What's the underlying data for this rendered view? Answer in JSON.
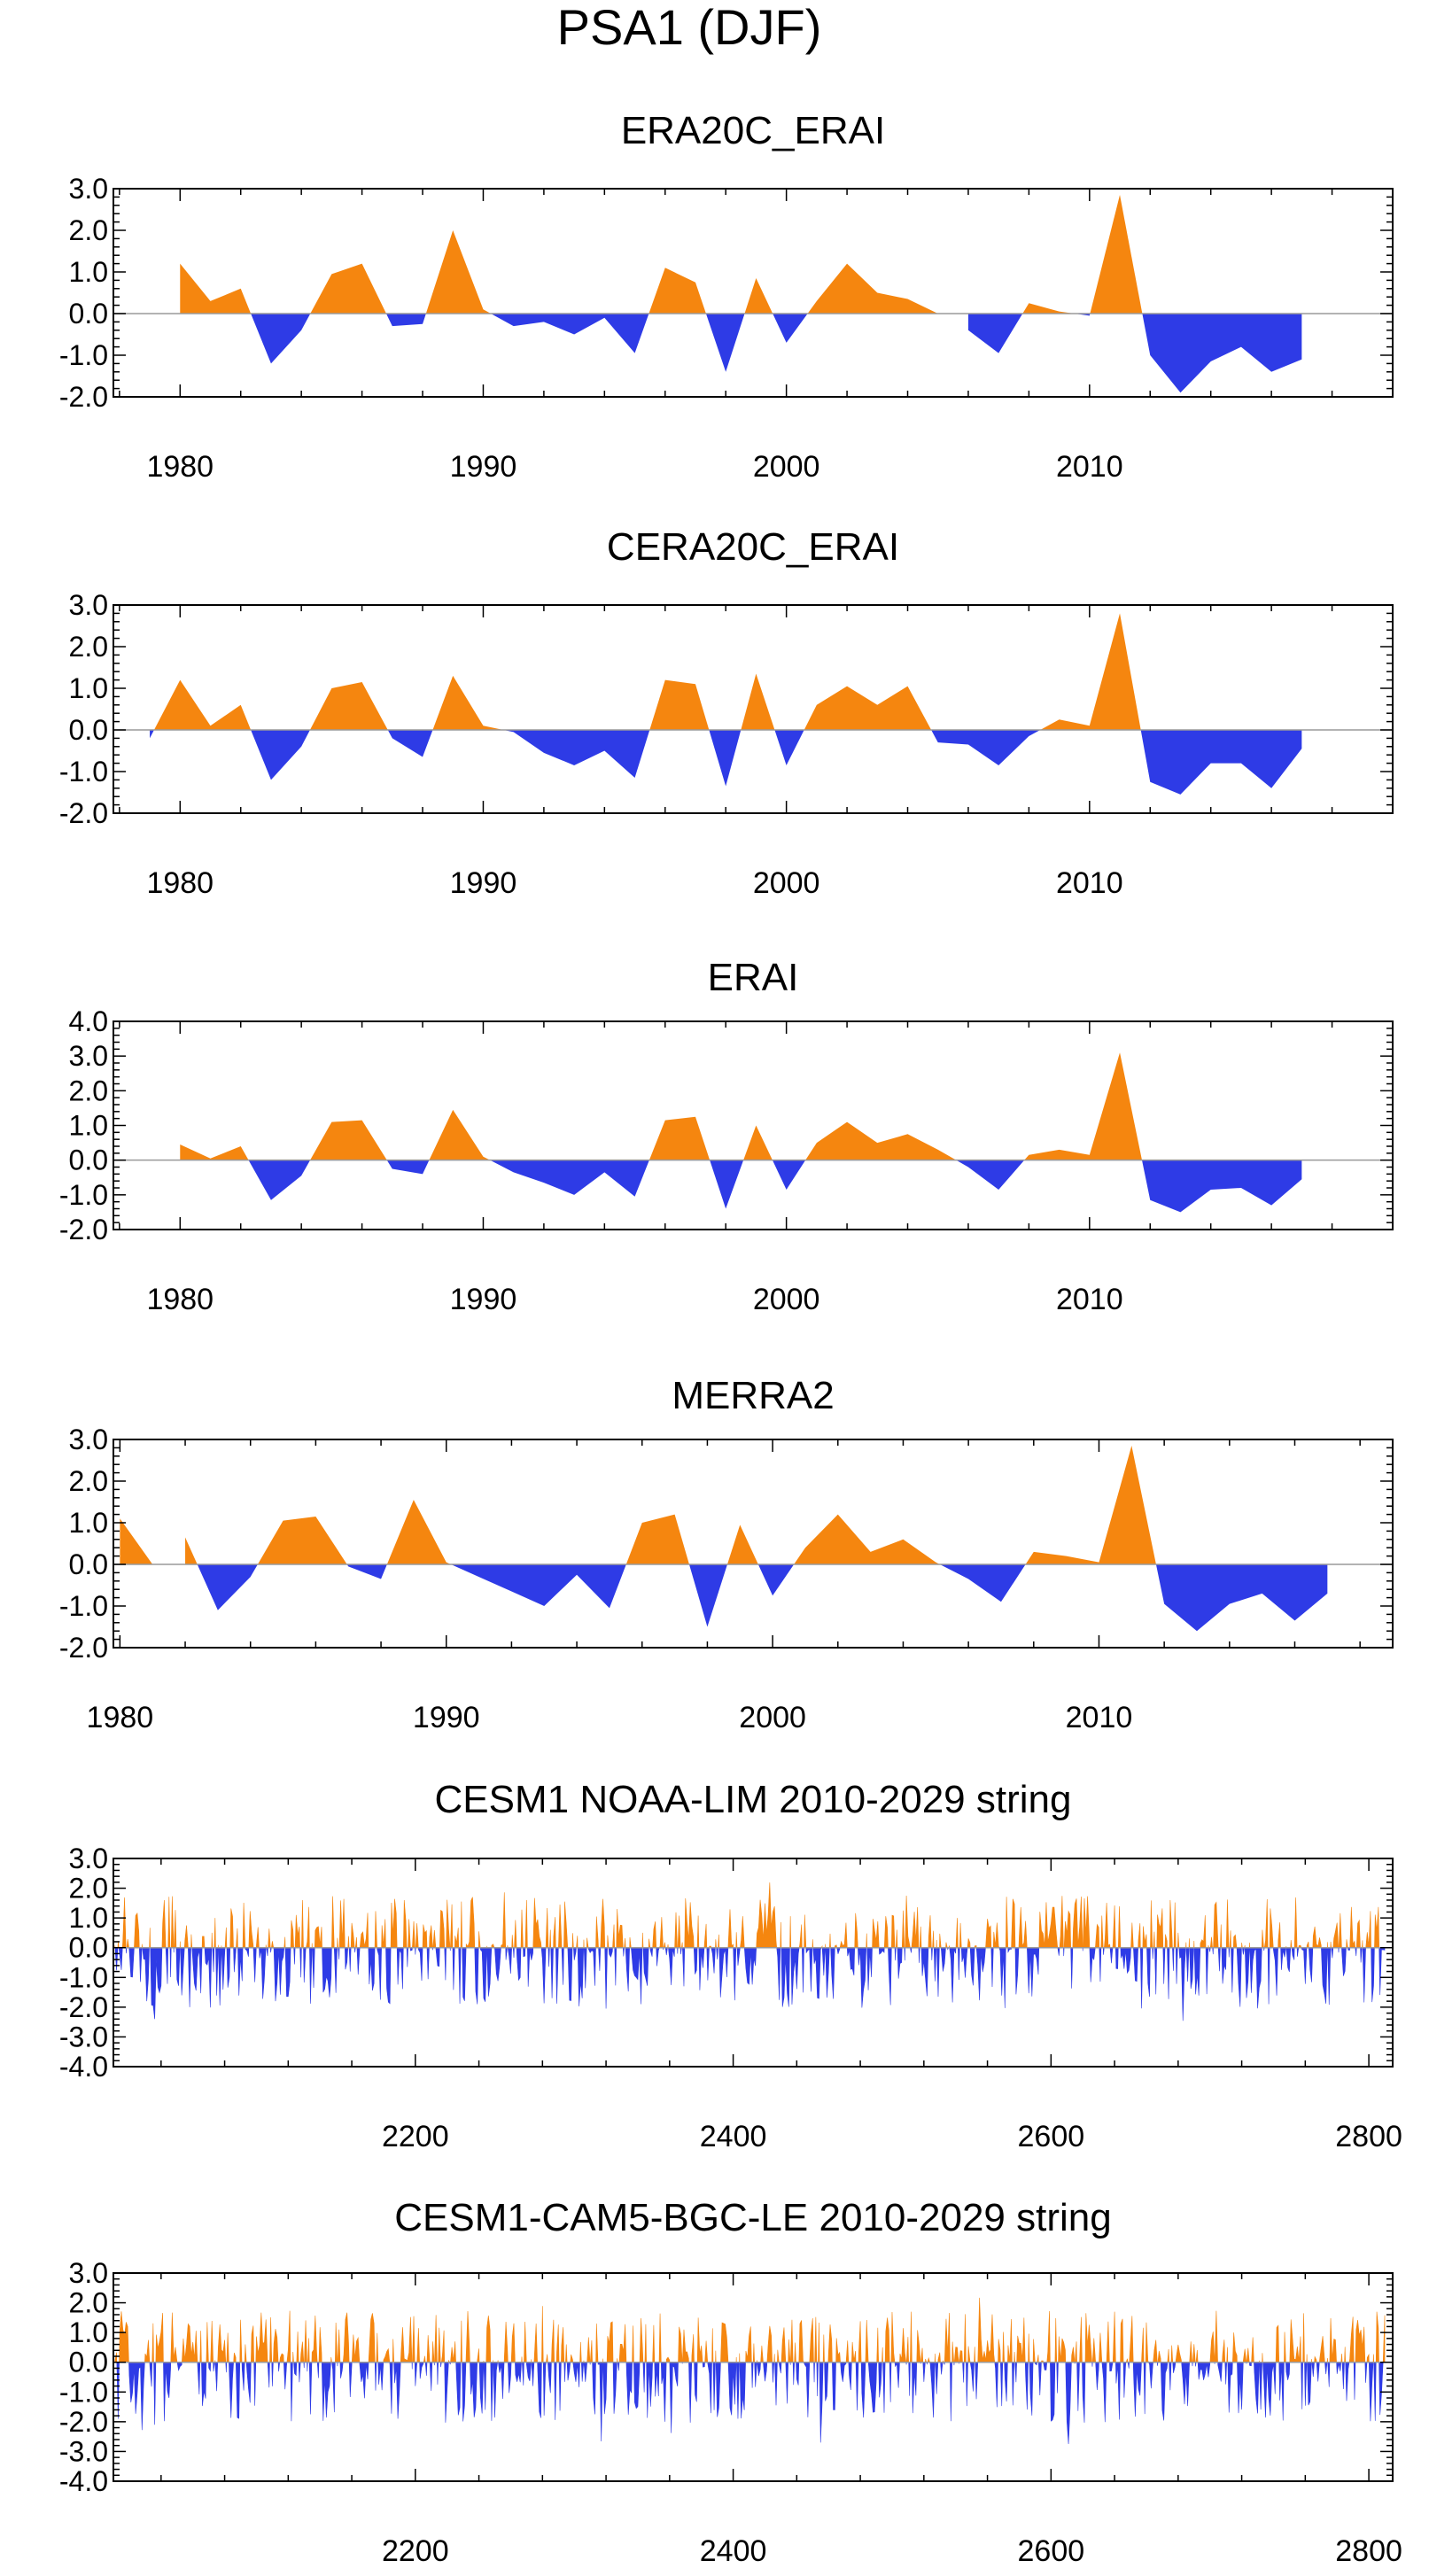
{
  "figure": {
    "title": "PSA1 (DJF)"
  },
  "colors": {
    "positive": "#F5860F",
    "negative": "#2E3BE6",
    "axis": "#000000",
    "zero_line": "#9a9a9a"
  },
  "chart_data": [
    {
      "type": "area",
      "title": "ERA20C_ERAI",
      "x": [
        1979,
        1980,
        1981,
        1982,
        1983,
        1984,
        1985,
        1986,
        1987,
        1988,
        1989,
        1990,
        1991,
        1992,
        1993,
        1994,
        1995,
        1996,
        1997,
        1998,
        1999,
        2000,
        2001,
        2002,
        2003,
        2004,
        2005,
        2006,
        2007,
        2008,
        2009,
        2010,
        2011,
        2012,
        2013,
        2014,
        2015,
        2016,
        2017
      ],
      "values": [
        0.0,
        1.2,
        0.3,
        0.6,
        -1.2,
        -0.4,
        0.95,
        1.2,
        -0.3,
        -0.25,
        2.0,
        0.1,
        -0.3,
        -0.2,
        -0.5,
        -0.1,
        -0.95,
        1.1,
        0.75,
        -1.4,
        0.85,
        -0.7,
        0.3,
        1.2,
        0.5,
        0.35,
        0.0,
        -0.4,
        -0.95,
        0.25,
        0.05,
        -0.05,
        2.85,
        -1.0,
        -1.9,
        -1.15,
        -0.8,
        -1.4,
        -1.1
      ],
      "yticks": [
        "3.0",
        "2.0",
        "1.0",
        "0.0",
        "-1.0",
        "-2.0"
      ],
      "ylim": [
        -2.0,
        3.0
      ],
      "xticks": [
        "1980",
        "1990",
        "2000",
        "2010"
      ],
      "xlim": [
        1977.8,
        2020.0
      ]
    },
    {
      "type": "area",
      "title": "CERA20C_ERAI",
      "x": [
        1979,
        1980,
        1981,
        1982,
        1983,
        1984,
        1985,
        1986,
        1987,
        1988,
        1989,
        1990,
        1991,
        1992,
        1993,
        1994,
        1995,
        1996,
        1997,
        1998,
        1999,
        2000,
        2001,
        2002,
        2003,
        2004,
        2005,
        2006,
        2007,
        2008,
        2009,
        2010,
        2011,
        2012,
        2013,
        2014,
        2015,
        2016,
        2017
      ],
      "values": [
        -0.2,
        1.2,
        0.1,
        0.6,
        -1.2,
        -0.4,
        1.0,
        1.15,
        -0.2,
        -0.65,
        1.3,
        0.1,
        -0.05,
        -0.55,
        -0.85,
        -0.5,
        -1.15,
        1.2,
        1.1,
        -1.35,
        1.35,
        -0.85,
        0.6,
        1.05,
        0.6,
        1.05,
        -0.3,
        -0.35,
        -0.85,
        -0.15,
        0.25,
        0.1,
        2.8,
        -1.25,
        -1.55,
        -0.8,
        -0.8,
        -1.4,
        -0.45
      ],
      "yticks": [
        "3.0",
        "2.0",
        "1.0",
        "0.0",
        "-1.0",
        "-2.0"
      ],
      "ylim": [
        -2.0,
        3.0
      ],
      "xticks": [
        "1980",
        "1990",
        "2000",
        "2010"
      ],
      "xlim": [
        1977.8,
        2020.0
      ]
    },
    {
      "type": "area",
      "title": "ERAI",
      "x": [
        1979,
        1980,
        1981,
        1982,
        1983,
        1984,
        1985,
        1986,
        1987,
        1988,
        1989,
        1990,
        1991,
        1992,
        1993,
        1994,
        1995,
        1996,
        1997,
        1998,
        1999,
        2000,
        2001,
        2002,
        2003,
        2004,
        2005,
        2006,
        2007,
        2008,
        2009,
        2010,
        2011,
        2012,
        2013,
        2014,
        2015,
        2016,
        2017
      ],
      "values": [
        0.0,
        0.45,
        0.05,
        0.4,
        -1.15,
        -0.45,
        1.1,
        1.15,
        -0.25,
        -0.4,
        1.45,
        0.1,
        -0.35,
        -0.65,
        -1.0,
        -0.35,
        -1.05,
        1.15,
        1.25,
        -1.4,
        1.0,
        -0.85,
        0.5,
        1.1,
        0.5,
        0.75,
        0.3,
        -0.2,
        -0.85,
        0.15,
        0.3,
        0.15,
        3.1,
        -1.15,
        -1.5,
        -0.85,
        -0.8,
        -1.3,
        -0.55
      ],
      "yticks": [
        "4.0",
        "3.0",
        "2.0",
        "1.0",
        "0.0",
        "-1.0",
        "-2.0"
      ],
      "ylim": [
        -2.0,
        4.0
      ],
      "xticks": [
        "1980",
        "1990",
        "2000",
        "2010"
      ],
      "xlim": [
        1977.8,
        2020.0
      ]
    },
    {
      "type": "area",
      "title": "MERRA2",
      "x": [
        1980,
        1981,
        1982,
        1983,
        1984,
        1985,
        1986,
        1987,
        1988,
        1989,
        1990,
        1991,
        1992,
        1993,
        1994,
        1995,
        1996,
        1997,
        1998,
        1999,
        2000,
        2001,
        2002,
        2003,
        2004,
        2005,
        2006,
        2007,
        2008,
        2009,
        2010,
        2011,
        2012,
        2013,
        2014,
        2015,
        2016,
        2017
      ],
      "values": [
        1.1,
        0.0,
        0.65,
        -1.1,
        -0.3,
        1.05,
        1.15,
        -0.05,
        -0.35,
        1.55,
        0.05,
        -0.3,
        -0.65,
        -1.0,
        -0.25,
        -1.05,
        1.0,
        1.2,
        -1.5,
        0.95,
        -0.75,
        0.4,
        1.2,
        0.3,
        0.6,
        0.05,
        -0.35,
        -0.9,
        0.3,
        0.2,
        0.05,
        2.85,
        -0.95,
        -1.6,
        -0.95,
        -0.7,
        -1.35,
        -0.7
      ],
      "yticks": [
        "3.0",
        "2.0",
        "1.0",
        "0.0",
        "-1.0",
        "-2.0"
      ],
      "ylim": [
        -2.0,
        3.0
      ],
      "xticks": [
        "1980",
        "1990",
        "2000",
        "2010"
      ],
      "xlim": [
        1979.8,
        2019.0
      ]
    },
    {
      "type": "area",
      "title": "CESM1 NOAA-LIM 2010-2029 string",
      "x_start": 2011,
      "x_end": 2810,
      "seed": 7,
      "yticks": [
        "3.0",
        "2.0",
        "1.0",
        "0.0",
        "-1.0",
        "-2.0",
        "-3.0",
        "-4.0"
      ],
      "ylim": [
        -4.0,
        3.0
      ],
      "xticks": [
        "2200",
        "2400",
        "2600",
        "2800"
      ],
      "xlim": [
        2010.0,
        2815.0
      ]
    },
    {
      "type": "area",
      "title": "CESM1-CAM5-BGC-LE 2010-2029 string",
      "x_start": 2011,
      "x_end": 2810,
      "seed": 23,
      "yticks": [
        "3.0",
        "2.0",
        "1.0",
        "0.0",
        "-1.0",
        "-2.0",
        "-3.0",
        "-4.0"
      ],
      "ylim": [
        -4.0,
        3.0
      ],
      "xticks": [
        "2200",
        "2400",
        "2600",
        "2800"
      ],
      "xlim": [
        2010.0,
        2815.0
      ]
    }
  ]
}
